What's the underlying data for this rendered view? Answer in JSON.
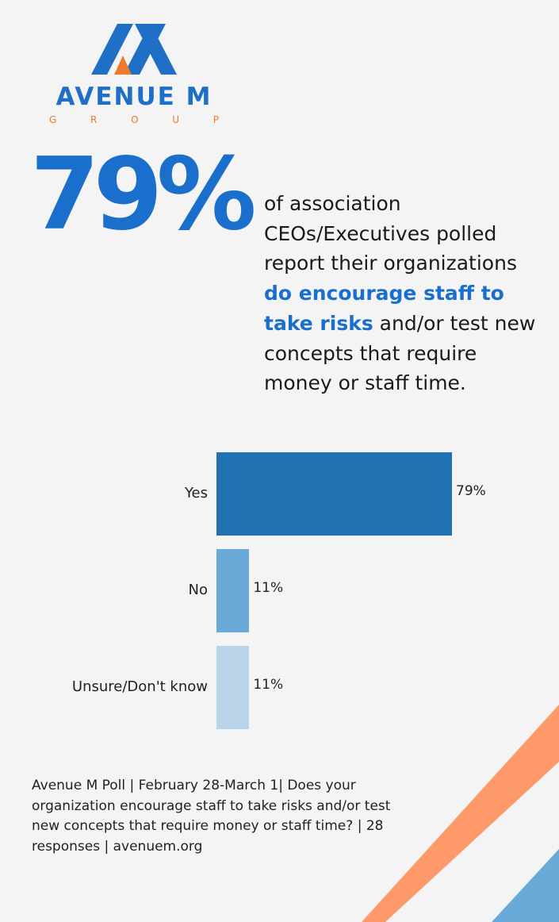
{
  "logo": {
    "name": "AVENUE M",
    "sub_letters": [
      "G",
      "R",
      "O",
      "U",
      "P"
    ]
  },
  "headline": {
    "stat": "79%",
    "text_before": "of association CEOs/Executives polled report their organizations ",
    "text_highlight": "do encourage staff to take risks",
    "text_after": " and/or test new concepts that require money or staff time."
  },
  "chart_data": {
    "type": "bar",
    "orientation": "horizontal",
    "categories": [
      "Yes",
      "No",
      "Unsure/Don't know"
    ],
    "values": [
      79,
      11,
      11
    ],
    "value_labels": [
      "79%",
      "11%",
      "11%"
    ],
    "colors": [
      "#2271b3",
      "#6aaad8",
      "#bad5ea"
    ],
    "xlim": [
      0,
      100
    ]
  },
  "footer": {
    "text": "Avenue M Poll | February 28-March 1| Does your organization encourage staff to take risks and/or test new concepts that require money or staff time? | 28 responses | avenuem.org"
  },
  "colors": {
    "brand_blue": "#1a6fcc",
    "brand_orange": "#ee7a2e",
    "stripe_orange": "#fe9a6a",
    "stripe_blue": "#6aaad8",
    "background": "#f4f4f4"
  }
}
